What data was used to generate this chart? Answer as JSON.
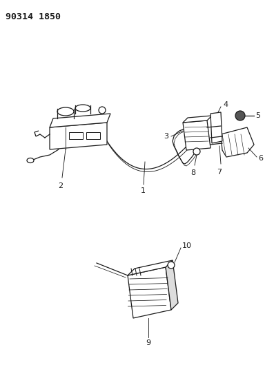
{
  "title": "90314 1850",
  "bg_color": "#ffffff",
  "line_color": "#1a1a1a",
  "fig_width": 3.97,
  "fig_height": 5.33,
  "dpi": 100
}
